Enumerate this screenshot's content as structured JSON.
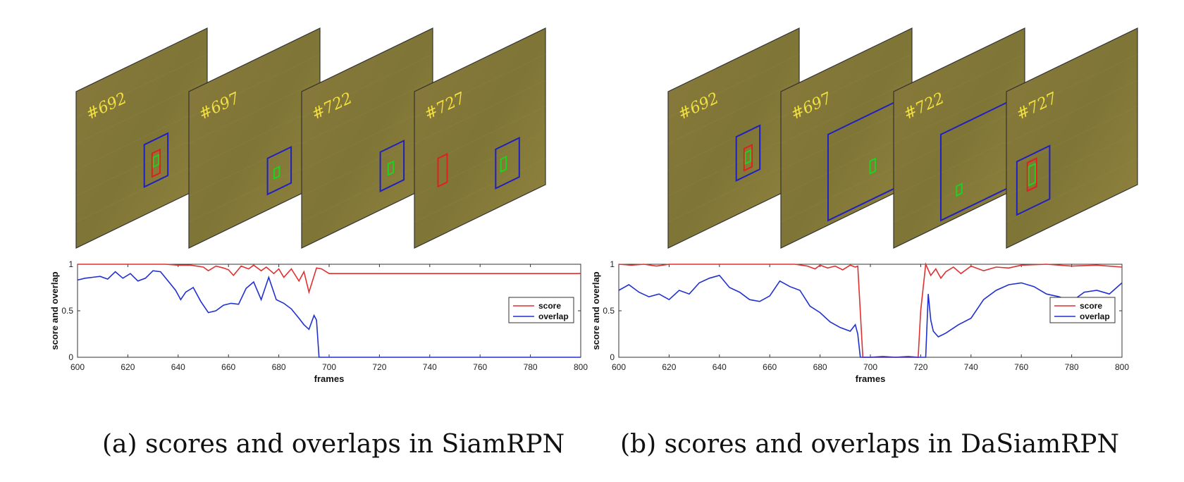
{
  "frame_labels_a": [
    "#692",
    "#697",
    "#722",
    "#727"
  ],
  "frame_labels_b": [
    "#692",
    "#697",
    "#722",
    "#727"
  ],
  "caption_a": "(a) scores and overlaps in SiamRPN",
  "caption_b": "(b) scores and overlaps in DaSiamRPN",
  "colors": {
    "score": "#e03030",
    "overlap": "#2030d0",
    "gt_box": "#e02020",
    "search_box": "#2020c0",
    "pred_box": "#20d020",
    "label": "#f2e040",
    "grass": "#8a7b3a"
  },
  "chart_data": [
    {
      "type": "line",
      "xlabel": "frames",
      "ylabel": "score and overlap",
      "xlim": [
        600,
        800
      ],
      "ylim": [
        0,
        1
      ],
      "xticks": [
        "600",
        "620",
        "640",
        "660",
        "680",
        "700",
        "720",
        "740",
        "760",
        "780",
        "800"
      ],
      "yticks": [
        "0",
        "0.5",
        "1"
      ],
      "legend_position": "right",
      "series": [
        {
          "name": "score",
          "x": [
            600,
            605,
            610,
            615,
            620,
            625,
            630,
            635,
            640,
            645,
            650,
            652,
            655,
            658,
            660,
            662,
            665,
            668,
            670,
            673,
            675,
            678,
            680,
            682,
            685,
            688,
            690,
            692,
            695,
            697,
            700,
            720,
            740,
            760,
            780,
            800
          ],
          "y": [
            1.0,
            1.0,
            1.0,
            1.0,
            1.0,
            1.0,
            1.0,
            1.0,
            0.99,
            0.99,
            0.97,
            0.93,
            0.98,
            0.96,
            0.94,
            0.88,
            0.98,
            0.95,
            0.99,
            0.93,
            0.97,
            0.9,
            0.95,
            0.86,
            0.95,
            0.82,
            0.92,
            0.7,
            0.96,
            0.95,
            0.9,
            0.9,
            0.9,
            0.9,
            0.9,
            0.9
          ]
        },
        {
          "name": "overlap",
          "x": [
            600,
            603,
            606,
            609,
            612,
            615,
            618,
            621,
            624,
            627,
            630,
            633,
            636,
            639,
            641,
            643,
            646,
            649,
            652,
            655,
            658,
            661,
            664,
            667,
            670,
            673,
            676,
            679,
            682,
            685,
            688,
            690,
            692,
            694,
            695,
            696,
            700,
            720,
            740,
            760,
            780,
            800
          ],
          "y": [
            0.83,
            0.85,
            0.86,
            0.87,
            0.84,
            0.92,
            0.85,
            0.9,
            0.82,
            0.85,
            0.93,
            0.92,
            0.82,
            0.72,
            0.62,
            0.7,
            0.75,
            0.6,
            0.48,
            0.5,
            0.56,
            0.58,
            0.57,
            0.74,
            0.81,
            0.62,
            0.86,
            0.62,
            0.58,
            0.52,
            0.42,
            0.35,
            0.3,
            0.45,
            0.4,
            0.0,
            0.0,
            0.0,
            0.0,
            0.0,
            0.0,
            0.0
          ]
        }
      ]
    },
    {
      "type": "line",
      "xlabel": "frames",
      "ylabel": "score and overlap",
      "xlim": [
        600,
        800
      ],
      "ylim": [
        0,
        1
      ],
      "xticks": [
        "600",
        "620",
        "640",
        "660",
        "680",
        "700",
        "720",
        "740",
        "760",
        "780",
        "800"
      ],
      "yticks": [
        "0",
        "0.5",
        "1"
      ],
      "legend_position": "right",
      "series": [
        {
          "name": "score",
          "x": [
            600,
            605,
            610,
            615,
            620,
            630,
            640,
            650,
            660,
            665,
            670,
            675,
            678,
            680,
            683,
            686,
            689,
            692,
            694,
            695,
            697,
            700,
            705,
            710,
            715,
            719,
            720,
            722,
            724,
            726,
            728,
            730,
            733,
            736,
            740,
            745,
            750,
            755,
            760,
            770,
            780,
            790,
            800
          ],
          "y": [
            1.0,
            0.99,
            1.0,
            0.98,
            1.0,
            1.0,
            1.0,
            1.0,
            1.0,
            1.0,
            1.0,
            0.98,
            0.95,
            0.99,
            0.96,
            0.98,
            0.94,
            0.99,
            0.97,
            0.98,
            0.0,
            0.0,
            0.01,
            0.0,
            0.01,
            0.0,
            0.5,
            1.0,
            0.88,
            0.95,
            0.85,
            0.92,
            0.97,
            0.9,
            0.98,
            0.93,
            0.97,
            0.96,
            0.99,
            1.0,
            0.98,
            0.99,
            0.97
          ]
        },
        {
          "name": "overlap",
          "x": [
            600,
            604,
            608,
            612,
            616,
            620,
            624,
            628,
            632,
            636,
            640,
            644,
            648,
            652,
            656,
            660,
            664,
            668,
            672,
            676,
            680,
            684,
            688,
            692,
            694,
            695,
            696,
            722,
            723,
            724,
            725,
            727,
            730,
            735,
            740,
            745,
            750,
            755,
            760,
            765,
            770,
            775,
            780,
            785,
            790,
            795,
            800
          ],
          "y": [
            0.72,
            0.78,
            0.7,
            0.65,
            0.68,
            0.62,
            0.72,
            0.68,
            0.8,
            0.85,
            0.88,
            0.75,
            0.7,
            0.62,
            0.6,
            0.66,
            0.82,
            0.76,
            0.72,
            0.55,
            0.48,
            0.38,
            0.32,
            0.28,
            0.35,
            0.25,
            0.0,
            0.0,
            0.68,
            0.4,
            0.28,
            0.22,
            0.26,
            0.35,
            0.42,
            0.62,
            0.72,
            0.78,
            0.8,
            0.76,
            0.68,
            0.65,
            0.6,
            0.7,
            0.72,
            0.68,
            0.8
          ]
        }
      ]
    }
  ]
}
